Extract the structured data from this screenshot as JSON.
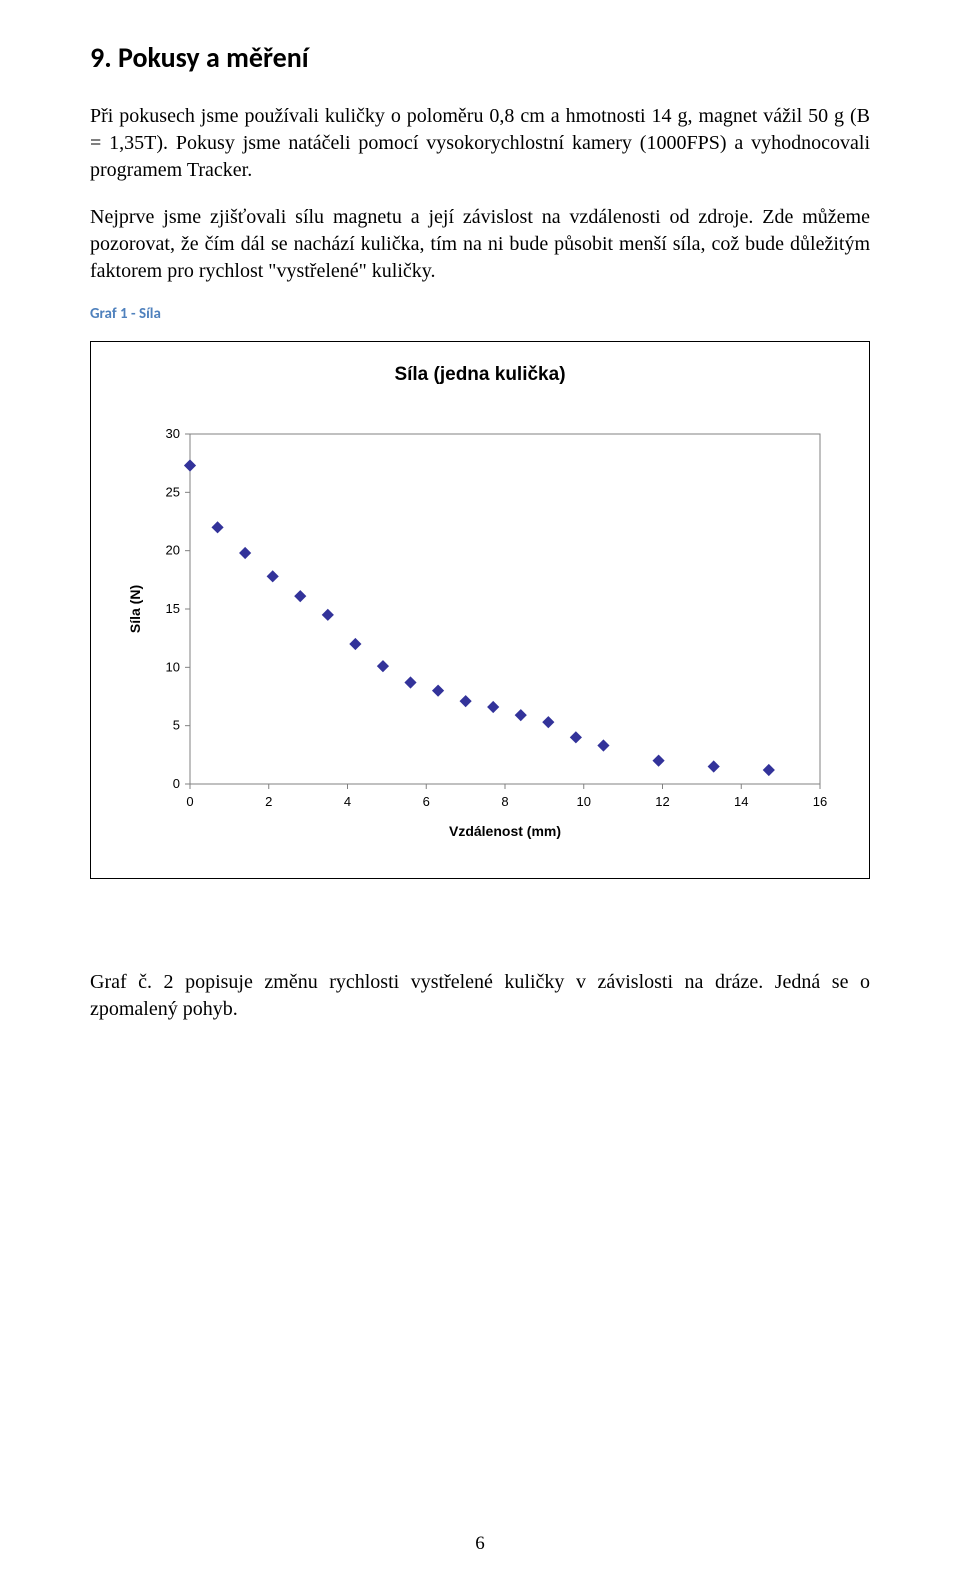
{
  "section": {
    "number_title": "9.  Pokusy a měření"
  },
  "para": {
    "p1": "Při pokusech jsme používali kuličky o poloměru 0,8 cm a hmotnosti 14 g, magnet vážil 50 g (B = 1,35T). Pokusy jsme natáčeli pomocí vysokorychlostní kamery (1000FPS) a vyhodnocovali programem Tracker.",
    "p2": "Nejprve jsme zjišťovali sílu magnetu a její závislost na vzdálenosti od zdroje. Zde můžeme pozorovat, že čím dál se nachází kulička, tím na ni bude působit menší síla, což bude důležitým faktorem pro rychlost \"vystřelené\" kuličky.",
    "p3": "Graf č. 2 popisuje změnu rychlosti vystřelené kuličky v závislosti na dráze. Jedná se o zpomalený pohyb."
  },
  "chart_caption": "Graf 1 - Síla",
  "chart": {
    "type": "scatter",
    "title": "Síla (jedna kulička)",
    "xlabel": "Vzdálenost (mm)",
    "ylabel": "Síla (N)",
    "title_fontsize": 19,
    "label_fontsize": 14,
    "tick_fontsize": 13,
    "marker": "diamond",
    "marker_size": 7,
    "marker_color": "#33339a",
    "plot_border_color": "#808080",
    "background_color": "#ffffff",
    "xlim": [
      0,
      16
    ],
    "ylim": [
      0,
      30
    ],
    "xtick_step": 2,
    "ytick_step": 5,
    "show_grid": false,
    "x": [
      0.0,
      0.7,
      1.4,
      2.1,
      2.8,
      3.5,
      4.2,
      4.9,
      5.6,
      6.3,
      7.0,
      7.7,
      8.4,
      9.1,
      9.8,
      10.5,
      11.9,
      13.3,
      14.7
    ],
    "y": [
      27.3,
      22.0,
      19.8,
      17.8,
      16.1,
      14.5,
      12.0,
      10.1,
      8.7,
      8.0,
      7.1,
      6.6,
      5.9,
      5.3,
      4.0,
      3.3,
      2.0,
      1.5,
      1.2
    ]
  },
  "page_number": "6"
}
